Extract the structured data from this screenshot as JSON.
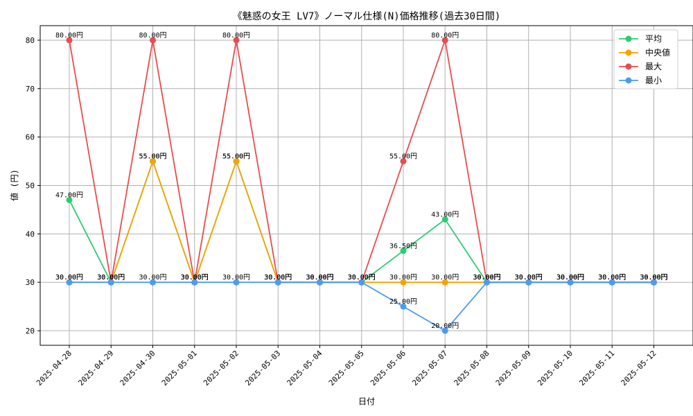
{
  "chart_data": {
    "type": "line",
    "title": "《魅惑の女王 LV7》ノーマル仕様(N)価格推移(過去30日間)",
    "xlabel": "日付",
    "ylabel": "値 (円)",
    "ylim": [
      17,
      83
    ],
    "yticks": [
      20,
      30,
      40,
      50,
      60,
      70,
      80
    ],
    "grid": true,
    "legend_position": "top-right",
    "value_suffix": "円",
    "categories": [
      "2025-04-28",
      "2025-04-29",
      "2025-04-30",
      "2025-05-01",
      "2025-05-02",
      "2025-05-03",
      "2025-05-04",
      "2025-05-05",
      "2025-05-06",
      "2025-05-07",
      "2025-05-08",
      "2025-05-09",
      "2025-05-10",
      "2025-05-11",
      "2025-05-12"
    ],
    "series": [
      {
        "name": "平均",
        "color": "#2ecc71",
        "values": [
          47,
          30,
          55,
          30,
          55,
          30,
          30,
          30,
          36.5,
          43,
          30,
          30,
          30,
          30,
          30
        ]
      },
      {
        "name": "中央値",
        "color": "#f5a300",
        "values": [
          30,
          30,
          55,
          30,
          55,
          30,
          30,
          30,
          30,
          30,
          30,
          30,
          30,
          30,
          30
        ]
      },
      {
        "name": "最大",
        "color": "#e84c4c",
        "values": [
          80,
          30,
          80,
          30,
          80,
          30,
          30,
          30,
          55,
          80,
          30,
          30,
          30,
          30,
          30
        ]
      },
      {
        "name": "最小",
        "color": "#4d9bf0",
        "values": [
          30,
          30,
          30,
          30,
          30,
          30,
          30,
          30,
          25,
          20,
          30,
          30,
          30,
          30,
          30
        ]
      }
    ]
  }
}
